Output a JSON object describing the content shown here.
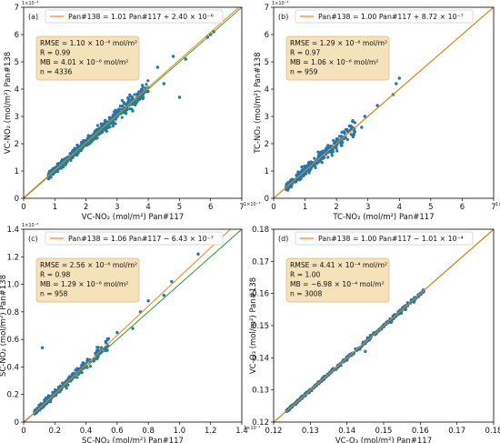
{
  "colors": {
    "orange": "#ff7f0e",
    "green": "#2ca02c",
    "points": "#1f77b4",
    "statbox": "#f5deb3"
  },
  "chart_data": [
    {
      "type": "scatter",
      "panel_label": "(a)",
      "legend_line": "Pan#138 = 1.01 Pan#117 + 2.40 × 10⁻⁶",
      "legend_placement": "top-center",
      "stats": [
        "RMSE = 1.10 × 10⁻⁶ mol/m²",
        "R = 0.99",
        "MB = 4.01 × 10⁻⁶ mol/m²",
        "n = 4336"
      ],
      "xlabel": "VC-NO₂ (mol/m²) Pan#117",
      "ylabel": "VC-NO₂ (mol/m²) Pan#138",
      "axis_multiplier": "1×10⁻⁴",
      "xlim": [
        0,
        7
      ],
      "ylim": [
        0,
        7
      ],
      "ticks": [
        "0",
        "1",
        "2",
        "3",
        "4",
        "5",
        "6",
        "7"
      ],
      "fit": {
        "slope": 1.01,
        "intercept": 0.024
      },
      "one_to_one": true,
      "grid": false,
      "cloud": {
        "x_min": 0.8,
        "x_max": 4.0,
        "spread": 0.18,
        "count": 650,
        "outliers": [
          [
            4.5,
            4.2
          ],
          [
            4.8,
            5.2
          ],
          [
            5.0,
            3.7
          ],
          [
            4.3,
            4.8
          ],
          [
            3.5,
            3.2
          ],
          [
            5.2,
            5.1
          ],
          [
            5.9,
            5.9
          ],
          [
            6.0,
            6.0
          ],
          [
            6.1,
            6.1
          ]
        ]
      }
    },
    {
      "type": "scatter",
      "panel_label": "(b)",
      "legend_line": "Pan#138 = 1.00 Pan#117 + 8.72 × 10⁻⁷",
      "legend_placement": "top-center",
      "stats": [
        "RMSE = 1.29 × 10⁻⁶ mol/m²",
        "R = 0.97",
        "MB = 1.06 × 10⁻⁶ mol/m²",
        "n = 959"
      ],
      "xlabel": "TC-NO₂ (mol/m²) Pan#117",
      "ylabel": "TC-NO₂ (mol/m²) Pan#138",
      "axis_multiplier": "1×10⁻⁴",
      "xlim": [
        0,
        7
      ],
      "ylim": [
        0,
        7
      ],
      "ticks": [
        "0",
        "1",
        "2",
        "3",
        "4",
        "5",
        "6",
        "7"
      ],
      "fit": {
        "slope": 1.0,
        "intercept": 0.0087
      },
      "one_to_one": true,
      "grid": false,
      "cloud": {
        "x_min": 0.4,
        "x_max": 2.6,
        "spread": 0.2,
        "count": 300,
        "outliers": [
          [
            3.8,
            3.8
          ],
          [
            3.9,
            4.2
          ],
          [
            4.0,
            4.4
          ],
          [
            2.8,
            2.6
          ],
          [
            2.9,
            3.0
          ],
          [
            3.3,
            3.4
          ]
        ]
      }
    },
    {
      "type": "scatter",
      "panel_label": "(c)",
      "legend_line": "Pan#138 = 1.06 Pan#117 − 6.43 × 10⁻⁷",
      "legend_placement": "top-center",
      "stats": [
        "RMSE = 2.56 × 10⁻⁶ mol/m²",
        "R = 0.98",
        "MB = 1.29 × 10⁻⁶ mol/m²",
        "n = 958"
      ],
      "xlabel": "SC-NO₂ (mol/m²) Pan#117",
      "ylabel": "SC-NO₂ (mol/m²) Pan#138",
      "axis_multiplier": "1×10⁻⁴",
      "xlim": [
        0,
        1.4
      ],
      "ylim": [
        0,
        1.4
      ],
      "ticks": [
        "0",
        "0.2",
        "0.4",
        "0.6",
        "0.8",
        "1.0",
        "1.2",
        "1.4"
      ],
      "fit": {
        "slope": 1.06,
        "intercept": -0.0064
      },
      "one_to_one": true,
      "grid": false,
      "cloud": {
        "x_min": 0.07,
        "x_max": 0.55,
        "spread": 0.03,
        "count": 300,
        "outliers": [
          [
            0.12,
            0.54
          ],
          [
            0.6,
            0.65
          ],
          [
            0.7,
            0.68
          ],
          [
            0.8,
            0.88
          ],
          [
            0.9,
            0.92
          ],
          [
            0.95,
            1.02
          ],
          [
            1.12,
            1.22
          ],
          [
            0.75,
            0.8
          ]
        ]
      }
    },
    {
      "type": "scatter",
      "panel_label": "(d)",
      "legend_line": "Pan#138 = 1.00 Pan#117 − 1.01 × 10⁻⁴",
      "legend_placement": "top-center",
      "stats": [
        "RMSE = 4.41 × 10⁻⁴ mol/m²",
        "R = 1.00",
        "MB = −6.98 × 10⁻⁴ mol/m²",
        "n = 3008"
      ],
      "xlabel": "VC-O₃ (mol/m²) Pan#117",
      "ylabel": "VC-O₃ (mol/m²) Pan#138",
      "axis_multiplier": "",
      "xlim": [
        0.12,
        0.18
      ],
      "ylim": [
        0.12,
        0.18
      ],
      "ticks": [
        "0.12",
        "0.13",
        "0.14",
        "0.15",
        "0.16",
        "0.17",
        "0.18"
      ],
      "fit": {
        "slope": 1.0,
        "intercept": -0.000101
      },
      "one_to_one": true,
      "grid": false,
      "cloud": {
        "x_min": 0.1235,
        "x_max": 0.161,
        "spread": 0.0005,
        "count": 500,
        "outliers": [
          [
            0.145,
            0.142
          ],
          [
            0.152,
            0.151
          ],
          [
            0.156,
            0.155
          ]
        ]
      }
    }
  ]
}
